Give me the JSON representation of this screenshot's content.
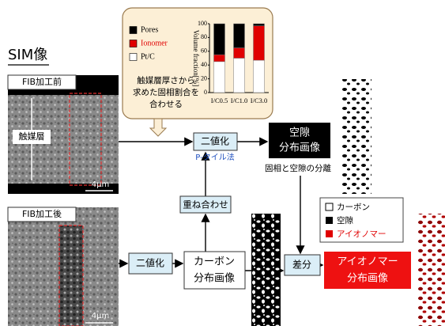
{
  "title": "SIM像",
  "images": [
    {
      "label": "FIB加工前",
      "layer_label": "触媒層",
      "scale": "4μm"
    },
    {
      "label": "FIB加工後",
      "scale": "4μm"
    }
  ],
  "callout": {
    "text_lines": [
      "触媒層厚さから",
      "求めた固相割合を",
      "合わせる"
    ]
  },
  "chart_data": {
    "type": "bar",
    "stacked": true,
    "y_label": "Volume fraction[%]",
    "categories": [
      "I/C0.5",
      "I/C1.0",
      "I/C3.0"
    ],
    "series": [
      {
        "name": "Pores",
        "color": "#000000",
        "values": [
          45,
          35,
          3
        ]
      },
      {
        "name": "Ionomer",
        "color": "#e00000",
        "values": [
          10,
          15,
          50
        ]
      },
      {
        "name": "Pt/C",
        "color": "#ffffff",
        "values": [
          45,
          50,
          47
        ]
      }
    ],
    "ylim": [
      0,
      100
    ],
    "yticks": [
      0,
      20,
      40,
      60,
      80,
      100
    ]
  },
  "nodes": {
    "binarize_top": {
      "label": "二値化",
      "method": "P-タイル法"
    },
    "pore_image": {
      "lines": [
        "空隙",
        "分布画像"
      ],
      "note": "固相と空隙の分離"
    },
    "overlay": {
      "label": "重ね合わせ"
    },
    "binarize_bottom": {
      "label": "二値化"
    },
    "carbon_image": {
      "lines": [
        "カーボン",
        "分布画像"
      ]
    },
    "difference": {
      "label": "差分"
    },
    "ionomer_image": {
      "lines": [
        "アイオノマー",
        "分布画像"
      ]
    }
  },
  "legend": [
    "カーボン",
    "空隙",
    "アイオノマー"
  ]
}
